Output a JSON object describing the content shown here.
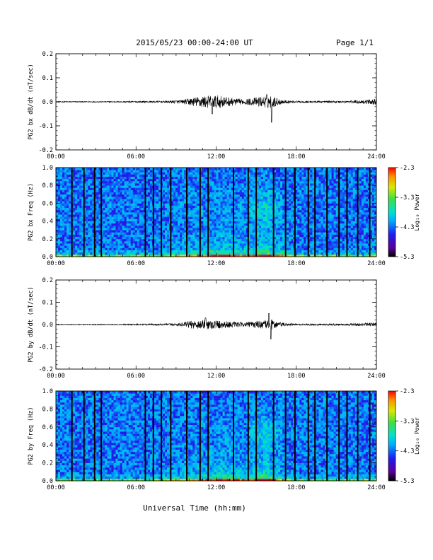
{
  "header": {
    "title": "2015/05/23  00:00-24:00 UT",
    "page": "Page 1/1"
  },
  "footer": {
    "xlabel": "Universal Time (hh:mm)"
  },
  "colors": {
    "trace": "#000000",
    "colormap": [
      "#000000",
      "#5a009a",
      "#1f1cf0",
      "#00aaff",
      "#00e0d0",
      "#40e040",
      "#d8e800",
      "#ff9000",
      "#ff0000"
    ]
  },
  "chart_data": [
    {
      "type": "line",
      "ylabel": "PG2 bx dB/dt (nT/sec)",
      "xlim": [
        0,
        24
      ],
      "ylim": [
        -0.2,
        0.2
      ],
      "yticks": [
        "0.2",
        "0.1",
        "0.0",
        "-0.1",
        "-0.2"
      ],
      "ytick_values": [
        0.2,
        0.1,
        0.0,
        -0.1,
        -0.2
      ],
      "xticks": [
        "00:00",
        "06:00",
        "12:00",
        "18:00",
        "24:00"
      ],
      "xtick_values": [
        0,
        6,
        12,
        18,
        24
      ],
      "series": [
        {
          "x": [
            0,
            2,
            4,
            6,
            8,
            9.5,
            10,
            11,
            12,
            13,
            14,
            15,
            15.8,
            16,
            16.3,
            17,
            18,
            20,
            22,
            23.5,
            24
          ],
          "amplitude": [
            0.002,
            0.002,
            0.002,
            0.003,
            0.004,
            0.008,
            0.015,
            0.025,
            0.028,
            0.018,
            0.01,
            0.018,
            0.025,
            0.03,
            0.022,
            0.008,
            0.004,
            0.004,
            0.005,
            0.01,
            0.012
          ],
          "spikes": [
            {
              "x": 11.7,
              "y": -0.05
            },
            {
              "x": 16.15,
              "y": -0.085
            },
            {
              "x": 15.8,
              "y": 0.03
            }
          ]
        }
      ]
    },
    {
      "type": "heatmap",
      "ylabel": "PG2 bx Freq (Hz)",
      "xlim": [
        0,
        24
      ],
      "ylim": [
        0,
        1.0
      ],
      "yticks": [
        "1.0",
        "0.8",
        "0.6",
        "0.4",
        "0.2",
        "0.0"
      ],
      "ytick_values": [
        1.0,
        0.8,
        0.6,
        0.4,
        0.2,
        0.0
      ],
      "xticks": [
        "00:00",
        "06:00",
        "12:00",
        "18:00",
        "24:00"
      ],
      "xtick_values": [
        0,
        6,
        12,
        18,
        24
      ],
      "colorbar": {
        "label": "Log₁₀ Power",
        "ticks": [
          "-2.3",
          "-3.3",
          "-4.3",
          "-5.3"
        ],
        "tick_values": [
          -2.3,
          -3.3,
          -4.3,
          -5.3
        ],
        "range": [
          -5.3,
          -2.3
        ]
      },
      "gap_times": [
        1.2,
        2.1,
        2.9,
        3.4,
        6.7,
        7.3,
        7.9,
        8.6,
        9.8,
        10.8,
        11.4,
        13.3,
        14.4,
        15.0,
        16.3,
        17.2,
        17.9,
        18.9,
        19.4,
        20.3,
        21.2,
        21.8,
        22.6,
        23.5
      ]
    },
    {
      "type": "line",
      "ylabel": "PG2 by dB/dt (nT/sec)",
      "xlim": [
        0,
        24
      ],
      "ylim": [
        -0.2,
        0.2
      ],
      "yticks": [
        "0.2",
        "0.1",
        "0.0",
        "-0.1",
        "-0.2"
      ],
      "ytick_values": [
        0.2,
        0.1,
        0.0,
        -0.1,
        -0.2
      ],
      "xticks": [
        "00:00",
        "06:00",
        "12:00",
        "18:00",
        "24:00"
      ],
      "xtick_values": [
        0,
        6,
        12,
        18,
        24
      ],
      "series": [
        {
          "x": [
            0,
            2,
            4,
            6,
            8,
            9.5,
            10,
            11,
            12,
            13,
            14,
            15,
            15.8,
            16,
            16.3,
            17,
            18,
            20,
            22,
            23.5,
            24
          ],
          "amplitude": [
            0.002,
            0.002,
            0.002,
            0.003,
            0.004,
            0.008,
            0.016,
            0.022,
            0.02,
            0.014,
            0.009,
            0.016,
            0.02,
            0.028,
            0.018,
            0.008,
            0.004,
            0.004,
            0.005,
            0.008,
            0.009
          ],
          "spikes": [
            {
              "x": 15.95,
              "y": 0.05
            },
            {
              "x": 16.1,
              "y": -0.065
            },
            {
              "x": 11.2,
              "y": 0.03
            }
          ]
        }
      ]
    },
    {
      "type": "heatmap",
      "ylabel": "PG2 by Freq (Hz)",
      "xlim": [
        0,
        24
      ],
      "ylim": [
        0,
        1.0
      ],
      "yticks": [
        "1.0",
        "0.8",
        "0.6",
        "0.4",
        "0.2",
        "0.0"
      ],
      "ytick_values": [
        1.0,
        0.8,
        0.6,
        0.4,
        0.2,
        0.0
      ],
      "xticks": [
        "00:00",
        "06:00",
        "12:00",
        "18:00",
        "24:00"
      ],
      "xtick_values": [
        0,
        6,
        12,
        18,
        24
      ],
      "colorbar": {
        "label": "Log₁₀ Power",
        "ticks": [
          "-2.3",
          "-3.3",
          "-4.3",
          "-5.3"
        ],
        "tick_values": [
          -2.3,
          -3.3,
          -4.3,
          -5.3
        ],
        "range": [
          -5.3,
          -2.3
        ]
      },
      "gap_times": [
        1.2,
        2.1,
        2.9,
        3.4,
        6.7,
        7.3,
        7.9,
        8.6,
        9.8,
        10.8,
        11.4,
        13.3,
        14.4,
        15.0,
        16.3,
        17.2,
        17.9,
        18.9,
        19.4,
        20.3,
        21.2,
        21.8,
        22.6,
        23.5
      ]
    }
  ]
}
